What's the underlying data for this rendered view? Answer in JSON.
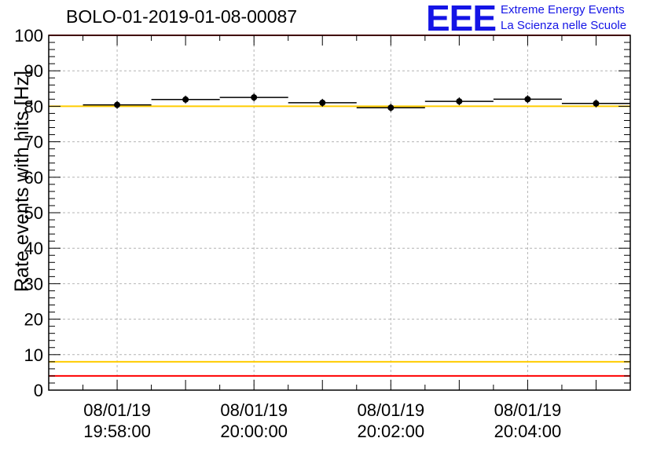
{
  "title": "BOLO-01-2019-01-08-00087",
  "logo": {
    "mark": "EEE",
    "line1": "Extreme Energy Events",
    "line2": "La Scienza nelle Scuole"
  },
  "colors": {
    "background": "#ffffff",
    "grid": "#b4b4b4",
    "red_line": "#ff0000",
    "yellow_line": "#ffcc00",
    "points": "#000000",
    "logo_blue": "#1414e6"
  },
  "chart_data": {
    "type": "scatter",
    "title": "BOLO-01-2019-01-08-00087",
    "xlabel": "",
    "ylabel": "Rate events with hits [Hz]",
    "ylim": [
      0,
      100
    ],
    "yticks": [
      0,
      10,
      20,
      30,
      40,
      50,
      60,
      70,
      80,
      90,
      100
    ],
    "xlim": [
      "2019-01-08 19:57:00",
      "2019-01-08 20:05:30"
    ],
    "xticks": [
      {
        "time": "2019-01-08 19:58:00",
        "date": "08/01/19",
        "clock": "19:58:00"
      },
      {
        "time": "2019-01-08 20:00:00",
        "date": "08/01/19",
        "clock": "20:00:00"
      },
      {
        "time": "2019-01-08 20:02:00",
        "date": "08/01/19",
        "clock": "20:02:00"
      },
      {
        "time": "2019-01-08 20:04:00",
        "date": "08/01/19",
        "clock": "20:04:00"
      }
    ],
    "grid": true,
    "series": [
      {
        "points": [
          {
            "x": "2019-01-08 19:58:00",
            "y": 80.4,
            "x_from": "2019-01-08 19:57:30",
            "x_to": "2019-01-08 19:58:30"
          },
          {
            "x": "2019-01-08 19:59:00",
            "y": 81.9,
            "x_from": "2019-01-08 19:58:30",
            "x_to": "2019-01-08 19:59:30"
          },
          {
            "x": "2019-01-08 20:00:00",
            "y": 82.5,
            "x_from": "2019-01-08 19:59:30",
            "x_to": "2019-01-08 20:00:30"
          },
          {
            "x": "2019-01-08 20:01:00",
            "y": 81.0,
            "x_from": "2019-01-08 20:00:30",
            "x_to": "2019-01-08 20:01:30"
          },
          {
            "x": "2019-01-08 20:02:00",
            "y": 79.6,
            "x_from": "2019-01-08 20:01:30",
            "x_to": "2019-01-08 20:02:30"
          },
          {
            "x": "2019-01-08 20:03:00",
            "y": 81.4,
            "x_from": "2019-01-08 20:02:30",
            "x_to": "2019-01-08 20:03:30"
          },
          {
            "x": "2019-01-08 20:04:00",
            "y": 82.0,
            "x_from": "2019-01-08 20:03:30",
            "x_to": "2019-01-08 20:04:30"
          },
          {
            "x": "2019-01-08 20:05:00",
            "y": 80.8,
            "x_from": "2019-01-08 20:04:30",
            "x_to": "2019-01-08 20:05:30"
          }
        ]
      }
    ],
    "reference_lines": [
      {
        "y": 100,
        "color": "red"
      },
      {
        "y": 80,
        "color": "yellow"
      },
      {
        "y": 8,
        "color": "yellow"
      },
      {
        "y": 4,
        "color": "red"
      }
    ]
  }
}
